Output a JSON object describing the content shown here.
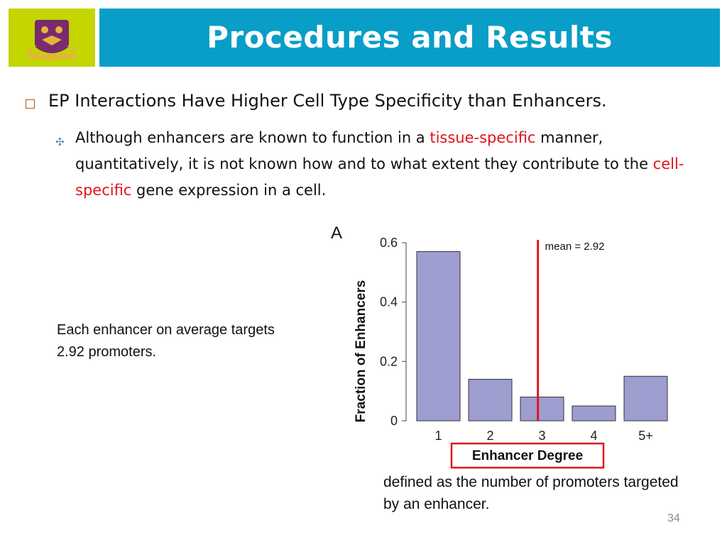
{
  "slide": {
    "title": "Procedures and Results",
    "bullet_main": "EP Interactions Have Higher Cell Type Specificity than Enhancers.",
    "sub_1": "Although enhancers are known to function in a ",
    "sub_red_1": "tissue-specific",
    "sub_2": " manner, quantitatively, it is not known how and to what extent they contribute to the ",
    "sub_red_2": "cell-specific",
    "sub_3": " gene expression in a cell.",
    "note_left": "Each enhancer on average targets 2.92 promoters.",
    "note_bottom": "defined as the number of promoters targeted by an enhancer.",
    "page_number": "34",
    "colors": {
      "title_bar": "#089ec7",
      "logo_bg": "#c3d600",
      "accent_red": "#e0141e",
      "bar_fill": "#9d9dd0"
    }
  },
  "chart_data": {
    "type": "bar",
    "panel_label": "A",
    "categories": [
      "1",
      "2",
      "3",
      "4",
      "5+"
    ],
    "values": [
      0.57,
      0.14,
      0.08,
      0.05,
      0.15
    ],
    "ylabel": "Fraction of Enhancers",
    "xlabel": "Enhancer Degree",
    "ylim": [
      0,
      0.6
    ],
    "yticks": [
      0,
      0.2,
      0.4,
      0.6
    ],
    "ytick_labels": [
      "0",
      "0.2",
      "0.4",
      "0.6"
    ],
    "mean_value": 2.92,
    "mean_label": "mean = 2.92",
    "grid": false
  }
}
